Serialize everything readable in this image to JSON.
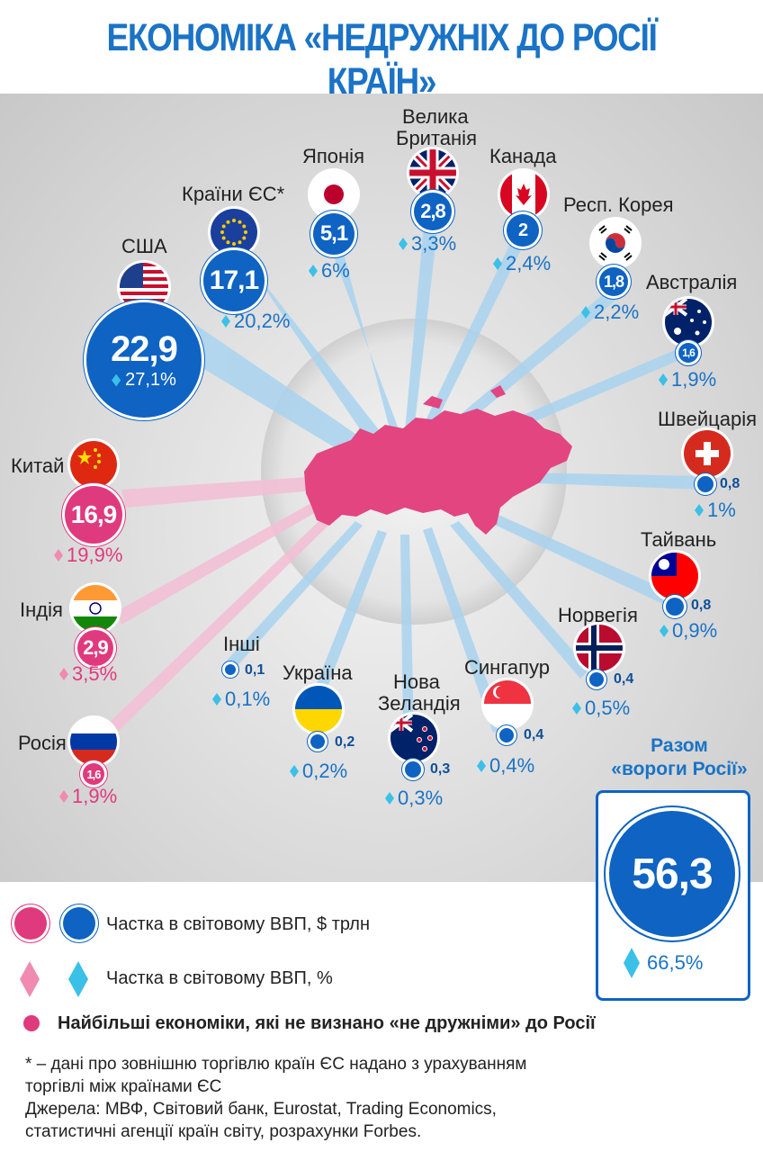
{
  "title": "ЕКОНОМІКА «НЕДРУЖНІХ ДО РОСІЇ КРАЇН»",
  "colors": {
    "blue": "#0e63c3",
    "pink": "#e03a7e",
    "light_blue": "#3bc0e8",
    "light_pink": "#f08ab0",
    "russia_map": "#e2457f"
  },
  "countries": {
    "usa": {
      "name": "США",
      "gdp": "22,9",
      "pct": "27,1%",
      "flag": "us-flag-icon"
    },
    "eu": {
      "name": "Країни ЄС*",
      "gdp": "17,1",
      "pct": "20,2%",
      "flag": "eu-flag-icon"
    },
    "japan": {
      "name": "Японія",
      "gdp": "5,1",
      "pct": "6%",
      "flag": "japan-flag-icon"
    },
    "uk": {
      "name1": "Велика",
      "name2": "Британія",
      "gdp": "2,8",
      "pct": "3,3%",
      "flag": "uk-flag-icon"
    },
    "canada": {
      "name": "Канада",
      "gdp": "2",
      "pct": "2,4%",
      "flag": "canada-flag-icon"
    },
    "korea": {
      "name": "Респ. Корея",
      "gdp": "1,8",
      "pct": "2,2%",
      "flag": "korea-flag-icon"
    },
    "australia": {
      "name": "Австралія",
      "gdp": "1,6",
      "pct": "1,9%",
      "flag": "australia-flag-icon"
    },
    "switzerland": {
      "name": "Швейцарія",
      "gdp": "0,8",
      "pct": "1%",
      "flag": "switzerland-flag-icon"
    },
    "taiwan": {
      "name": "Тайвань",
      "gdp": "0,8",
      "pct": "0,9%",
      "flag": "taiwan-flag-icon"
    },
    "norway": {
      "name": "Норвегія",
      "gdp": "0,4",
      "pct": "0,5%",
      "flag": "norway-flag-icon"
    },
    "singapore": {
      "name": "Сингапур",
      "gdp": "0,4",
      "pct": "0,4%",
      "flag": "singapore-flag-icon"
    },
    "newzealand": {
      "name1": "Нова",
      "name2": "Зеландія",
      "gdp": "0,3",
      "pct": "0,3%",
      "flag": "newzealand-flag-icon"
    },
    "ukraine": {
      "name": "Україна",
      "gdp": "0,2",
      "pct": "0,2%",
      "flag": "ukraine-flag-icon"
    },
    "others": {
      "name": "Інші",
      "gdp": "0,1",
      "pct": "0,1%"
    },
    "china": {
      "name": "Китай",
      "gdp": "16,9",
      "pct": "19,9%",
      "flag": "china-flag-icon"
    },
    "india": {
      "name": "Індія",
      "gdp": "2,9",
      "pct": "3,5%",
      "flag": "india-flag-icon"
    },
    "russia": {
      "name": "Росія",
      "gdp": "1,6",
      "pct": "1,9%",
      "flag": "russia-flag-icon"
    }
  },
  "total": {
    "label1": "Разом",
    "label2": "«вороги Росії»",
    "gdp": "56,3",
    "pct": "66,5%"
  },
  "legend": {
    "gdp_label": "Частка в світовому ВВП, $ трлн",
    "pct_label": "Частка в світовому ВВП, %",
    "pink_label": "Найбільші економіки, які не визнано «не дружніми» до Росії"
  },
  "footnote": {
    "line1": "* – дані про зовнішню торгівлю країн ЄС надано з урахуванням",
    "line2": "торгівлі між країнами ЄС",
    "line3": "Джерела: МВФ, Світовий банк, Eurostat, Trading Economics,",
    "line4": "статистичні агенції країн світу, розрахунки Forbes."
  }
}
